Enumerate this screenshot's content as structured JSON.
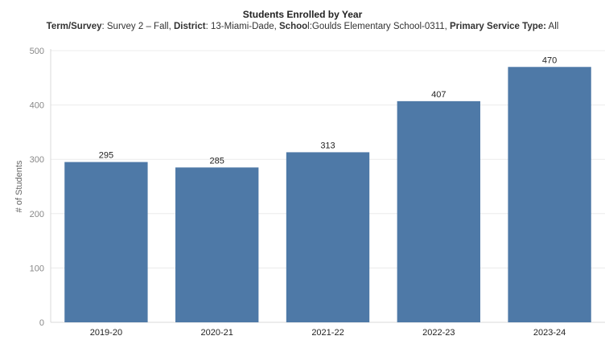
{
  "subtitle": {
    "term_label": "Term/Survey",
    "term_value": ": Survey 2 – Fall, ",
    "district_label": "District",
    "district_value": ": 13-Miami-Dade, ",
    "school_label": "Schoo",
    "school_value": "l:Goulds Elementary School-0311, ",
    "service_label": "Primary Service Type:",
    "service_value": " All"
  },
  "chart_data": {
    "type": "bar",
    "title": "Students Enrolled by Year",
    "xlabel": "",
    "ylabel": "# of Students",
    "categories": [
      "2019-20",
      "2020-21",
      "2021-22",
      "2022-23",
      "2023-24"
    ],
    "values": [
      295,
      285,
      313,
      407,
      470
    ],
    "ylim": [
      0,
      500
    ],
    "yticks": [
      0,
      100,
      200,
      300,
      400,
      500
    ],
    "grid": true,
    "bar_color": "#4e79a7"
  }
}
